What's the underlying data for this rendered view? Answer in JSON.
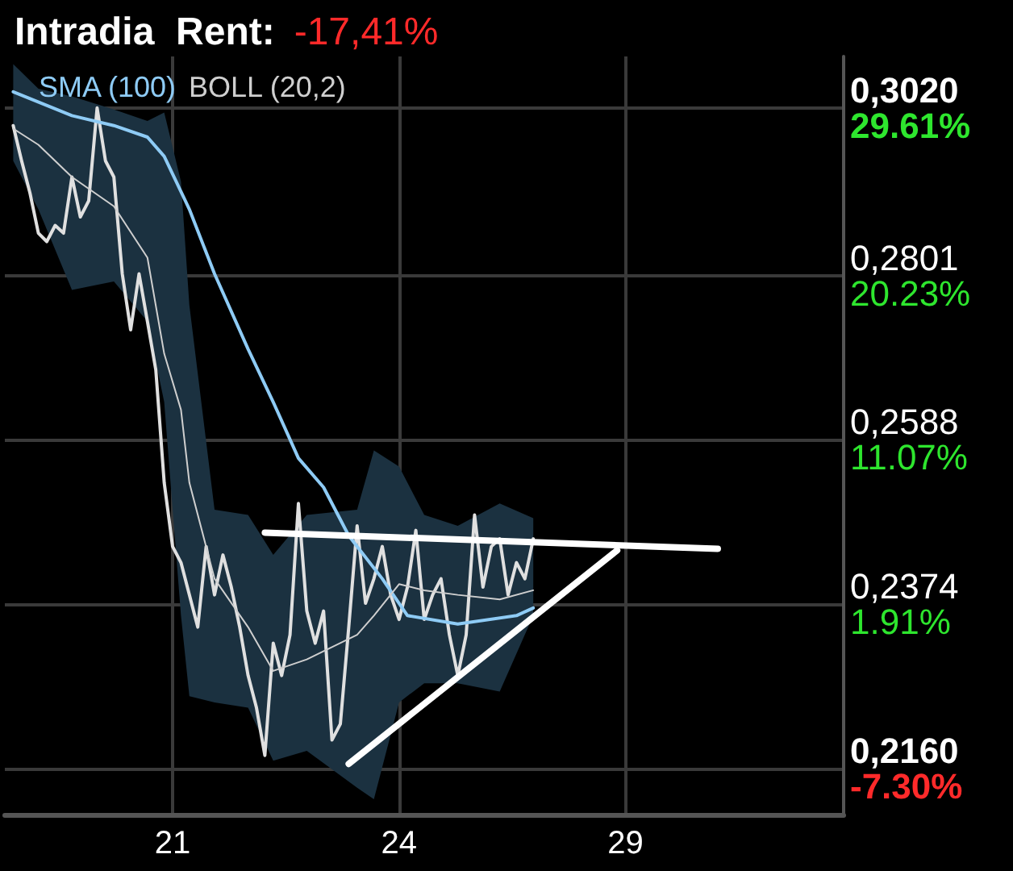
{
  "chart_data": {
    "type": "line",
    "title": "Intradia  Rent:",
    "annotations": [
      "-17,41%"
    ],
    "categories": [
      null,
      null,
      null,
      null,
      null,
      null,
      null,
      null,
      null,
      null,
      null,
      null,
      null,
      null,
      null,
      null,
      null,
      null,
      null,
      null,
      "21",
      null,
      null,
      null,
      null,
      null,
      null,
      null,
      null,
      null,
      null,
      null,
      null,
      null,
      null,
      null,
      null,
      null,
      null,
      null,
      null,
      null,
      null,
      null,
      null,
      null,
      null,
      "24",
      null,
      null,
      null,
      null,
      null,
      null,
      null,
      null,
      null,
      null,
      null,
      null,
      null,
      null,
      null,
      null,
      null,
      null,
      null,
      null,
      null,
      null,
      null,
      null,
      null,
      null,
      "29",
      null,
      null,
      null,
      null,
      null,
      null,
      null,
      null,
      null,
      null,
      null,
      null,
      null,
      null,
      null,
      null,
      null,
      null,
      null,
      null,
      null,
      null,
      null,
      null,
      null,
      null
    ],
    "series": [
      {
        "color": "#e0e0e0",
        "values": [
          null,
          0.2997,
          0.2951,
          0.2909,
          0.2857,
          0.2846,
          0.2867,
          0.2857,
          0.293,
          0.2878,
          0.2899,
          0.302,
          0.2951,
          0.293,
          0.2804,
          0.2731,
          0.2804,
          0.2742,
          0.2679,
          0.2532,
          0.2449,
          0.2428,
          0.2386,
          0.2344,
          0.2449,
          0.2386,
          0.2438,
          0.2396,
          0.2344,
          0.2281,
          0.2239,
          0.2177,
          0.2323,
          0.2281,
          0.2334,
          0.2505,
          0.2365,
          0.2323,
          0.2365,
          0.2197,
          0.2218,
          0.2344,
          0.2476,
          0.2375,
          0.2407,
          0.2449,
          0.2386,
          0.2354,
          0.2396,
          0.247,
          0.2354,
          0.2386,
          0.2407,
          0.2334,
          0.2281,
          0.2334,
          0.249,
          0.2396,
          0.2449,
          0.2459,
          0.2386,
          0.2428,
          0.2407,
          0.2459,
          null,
          null,
          null,
          null,
          null,
          null,
          null,
          null,
          null,
          null,
          null,
          null,
          null,
          null,
          null,
          null,
          null,
          null,
          null,
          null,
          null,
          null,
          null,
          null,
          null,
          null,
          null,
          null,
          null,
          null,
          null,
          null,
          null,
          null,
          null,
          null,
          null
        ]
      },
      {
        "name": "SMA (100)",
        "color": "#8ecbf5",
        "values": [
          null,
          0.3041,
          null,
          null,
          null,
          null,
          null,
          null,
          0.301,
          null,
          null,
          null,
          null,
          0.2997,
          null,
          null,
          null,
          0.2982,
          null,
          0.2957,
          null,
          null,
          0.2888,
          null,
          null,
          0.2804,
          null,
          null,
          null,
          0.2706,
          null,
          null,
          0.2637,
          null,
          null,
          0.2564,
          null,
          null,
          0.2526,
          null,
          null,
          0.2463,
          null,
          null,
          null,
          0.2407,
          null,
          null,
          0.2359,
          null,
          null,
          null,
          null,
          null,
          0.2348,
          null,
          null,
          null,
          null,
          null,
          null,
          0.2359,
          null,
          0.2369,
          null,
          null,
          null,
          null,
          null,
          null,
          null,
          null,
          null,
          null,
          null,
          null,
          null,
          null,
          null,
          null,
          null,
          null,
          null,
          null,
          null,
          null,
          null,
          null,
          null,
          null,
          null,
          null,
          null,
          null,
          null,
          null,
          null,
          null,
          null,
          null,
          null
        ]
      },
      {
        "name": "BOLL (20,2)",
        "color": "#cfcfcf",
        "values": [
          null,
          0.2993,
          null,
          null,
          0.2972,
          null,
          null,
          null,
          0.293,
          null,
          null,
          null,
          null,
          0.2892,
          null,
          null,
          null,
          0.2825,
          null,
          0.27,
          null,
          0.2627,
          0.2532,
          null,
          null,
          0.2407,
          null,
          null,
          null,
          0.2344,
          null,
          null,
          0.2287,
          null,
          null,
          null,
          0.2302,
          null,
          null,
          null,
          null,
          null,
          0.2334,
          null,
          0.2359,
          null,
          null,
          0.24,
          null,
          null,
          0.2392,
          null,
          null,
          null,
          0.2386,
          null,
          null,
          null,
          null,
          0.238,
          null,
          null,
          null,
          0.2392,
          null,
          null,
          null,
          null,
          null,
          null,
          null,
          null,
          null,
          null,
          null,
          null,
          null,
          null,
          null,
          null,
          null,
          null,
          null,
          null,
          null,
          null,
          null,
          null,
          null,
          null,
          null,
          null,
          null,
          null,
          null,
          null,
          null,
          null,
          null,
          null,
          null
        ],
        "upper": [
          null,
          0.3077,
          null,
          null,
          0.3045,
          null,
          null,
          null,
          0.3035,
          null,
          null,
          null,
          null,
          0.3018,
          null,
          null,
          null,
          0.3003,
          null,
          0.3014,
          null,
          0.2924,
          0.2763,
          null,
          null,
          0.2497,
          null,
          null,
          null,
          0.249,
          null,
          null,
          0.2438,
          null,
          null,
          null,
          0.249,
          null,
          null,
          null,
          null,
          null,
          0.2497,
          null,
          0.2574,
          null,
          null,
          0.2553,
          null,
          null,
          0.249,
          null,
          null,
          null,
          0.2476,
          null,
          null,
          null,
          null,
          0.2505,
          null,
          null,
          null,
          0.2486,
          null,
          null,
          null,
          null,
          null,
          null,
          null,
          null,
          null,
          null,
          null,
          null,
          null,
          null,
          null,
          null,
          null,
          null,
          null,
          null,
          null,
          null,
          null,
          null,
          null,
          null,
          null,
          null,
          null,
          null,
          null,
          null,
          null,
          null,
          null,
          null,
          null
        ],
        "lower": [
          null,
          0.2951,
          null,
          null,
          0.2888,
          null,
          null,
          null,
          0.2783,
          null,
          null,
          null,
          null,
          0.2794,
          null,
          null,
          null,
          0.2742,
          null,
          0.2637,
          null,
          0.2359,
          0.2254,
          null,
          null,
          0.2246,
          null,
          null,
          null,
          0.2239,
          null,
          null,
          0.217,
          null,
          null,
          null,
          0.2183,
          null,
          null,
          null,
          null,
          null,
          0.2135,
          null,
          0.212,
          null,
          null,
          0.2246,
          null,
          null,
          0.2271,
          null,
          null,
          null,
          0.2271,
          null,
          null,
          null,
          null,
          0.226,
          null,
          null,
          null,
          0.2359,
          null,
          null,
          null,
          null,
          null,
          null,
          null,
          null,
          null,
          null,
          null,
          null,
          null,
          null,
          null,
          null,
          null,
          null,
          null,
          null,
          null,
          null,
          null,
          null,
          null,
          null,
          null,
          null,
          null,
          null,
          null,
          null,
          null,
          null,
          null,
          null,
          null
        ]
      },
      {
        "color": "#ffffff",
        "values": [
          null,
          null,
          null,
          null,
          null,
          null,
          null,
          null,
          null,
          null,
          null,
          null,
          null,
          null,
          null,
          null,
          null,
          null,
          null,
          null,
          null,
          null,
          null,
          null,
          null,
          null,
          null,
          null,
          null,
          null,
          null,
          0.2467,
          null,
          null,
          null,
          null,
          null,
          null,
          null,
          null,
          null,
          null,
          null,
          null,
          null,
          null,
          null,
          null,
          null,
          null,
          null,
          null,
          null,
          null,
          null,
          null,
          null,
          null,
          null,
          null,
          null,
          null,
          null,
          null,
          null,
          null,
          null,
          null,
          null,
          null,
          null,
          null,
          null,
          null,
          null,
          null,
          null,
          null,
          null,
          null,
          null,
          null,
          null,
          null,
          null,
          0.2446,
          null,
          null,
          null,
          null,
          null,
          null,
          null,
          null,
          null,
          null,
          null,
          null,
          null,
          null,
          null
        ]
      },
      {
        "color": "#ffffff",
        "values": [
          null,
          null,
          null,
          null,
          null,
          null,
          null,
          null,
          null,
          null,
          null,
          null,
          null,
          null,
          null,
          null,
          null,
          null,
          null,
          null,
          null,
          null,
          null,
          null,
          null,
          null,
          null,
          null,
          null,
          null,
          null,
          null,
          null,
          null,
          null,
          null,
          null,
          null,
          null,
          null,
          null,
          0.2166,
          null,
          null,
          null,
          null,
          null,
          null,
          null,
          null,
          null,
          null,
          null,
          null,
          null,
          null,
          null,
          null,
          null,
          null,
          null,
          null,
          null,
          null,
          null,
          null,
          null,
          null,
          null,
          null,
          null,
          null,
          null,
          0.2444,
          null,
          null,
          null,
          null,
          null,
          null,
          null,
          null,
          null,
          null,
          null,
          null,
          null,
          null,
          null,
          null,
          null,
          null,
          null,
          null,
          null,
          null,
          null,
          null,
          null,
          null,
          null
        ]
      }
    ],
    "ylim": [
      0.21,
      0.3087
    ],
    "yticks": [
      {
        "value": 0.216,
        "label": "0,2160"
      },
      {
        "value": 0.2374,
        "label": "0,2374"
      },
      {
        "value": 0.2588,
        "label": "0,2588"
      },
      {
        "value": 0.2801,
        "label": "0,2801"
      },
      {
        "value": 0.302,
        "label": "0,3020"
      }
    ],
    "y2lim": [
      -9.87,
      32.48
    ],
    "y2ticks": [
      {
        "value": -7.3,
        "label": "-7.30%"
      },
      {
        "value": 1.91,
        "label": "1.91%"
      },
      {
        "value": 11.07,
        "label": "11.07%"
      },
      {
        "value": 20.23,
        "label": "20.23%"
      },
      {
        "value": 29.61,
        "label": "29.61%"
      }
    ],
    "grid": true,
    "legend": "top left",
    "marker": "none"
  }
}
